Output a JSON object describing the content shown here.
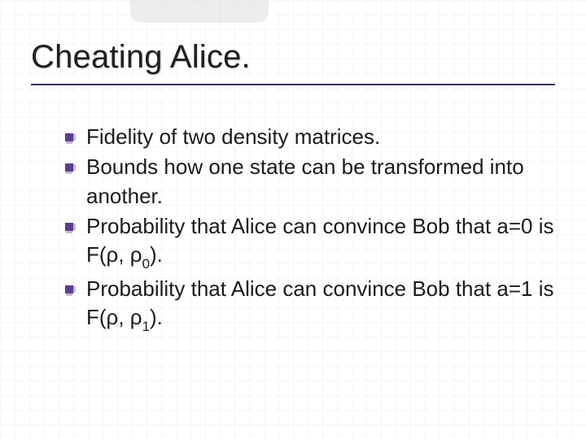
{
  "slide": {
    "title": "Cheating Alice.",
    "title_color": "#1f1f1f",
    "underline_color": "#3a2c5f",
    "bullet_color": "#5b3f8a",
    "body_text_color": "#1b1b1b",
    "background_color": "#ffffff",
    "grid_color": "#f2ecf7",
    "title_fontsize_pt": 30,
    "body_fontsize_pt": 20,
    "font_family": "Verdana",
    "bullets": [
      {
        "text": "Fidelity of two density matrices."
      },
      {
        "text": "Bounds how one state can be transformed into another."
      },
      {
        "text": "Probability that Alice can convince Bob that a=0 is F(ρ, ρ",
        "sub": "0",
        "tail": ")."
      },
      {
        "text": "Probability that Alice can convince Bob that a=1 is F(ρ, ρ",
        "sub": "1",
        "tail": ")."
      }
    ]
  }
}
